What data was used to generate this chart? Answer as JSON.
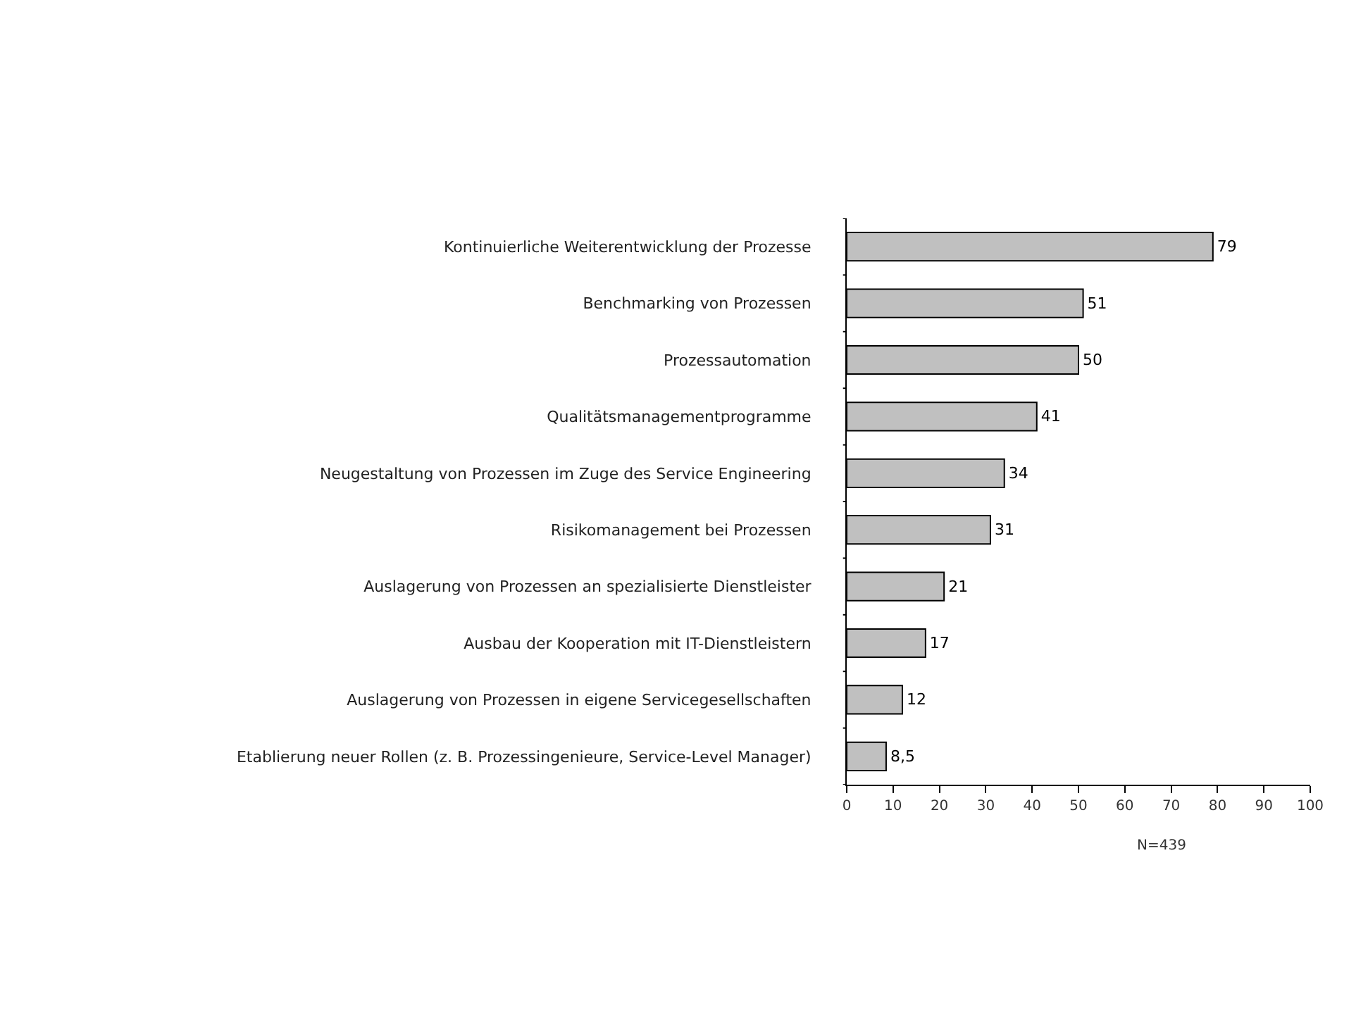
{
  "chart_data": {
    "type": "bar",
    "orientation": "horizontal",
    "categories": [
      "Kontinuierliche Weiterentwicklung der Prozesse",
      "Benchmarking von Prozessen",
      "Prozessautomation",
      "Qualitätsmanagementprogramme",
      "Neugestaltung von Prozessen im Zuge des Service Engineering",
      "Risikomanagement bei Prozessen",
      "Auslagerung von Prozessen an spezialisierte Dienstleister",
      "Ausbau der Kooperation mit IT-Dienstleistern",
      "Auslagerung von Prozessen in eigene Servicegesellschaften",
      "Etablierung neuer Rollen (z. B. Prozessingenieure, Service-Level Manager)"
    ],
    "values": [
      79,
      51,
      50,
      41,
      34,
      31,
      21,
      17,
      12,
      8.5
    ],
    "value_labels": [
      "79",
      "51",
      "50",
      "41",
      "34",
      "31",
      "21",
      "17",
      "12",
      "8,5"
    ],
    "color": "#c0c0c0",
    "xlim": [
      0,
      100
    ],
    "xticks": [
      0,
      10,
      20,
      30,
      40,
      50,
      60,
      70,
      80,
      90,
      100
    ],
    "legend": false,
    "annotations": [
      "N=439"
    ]
  }
}
